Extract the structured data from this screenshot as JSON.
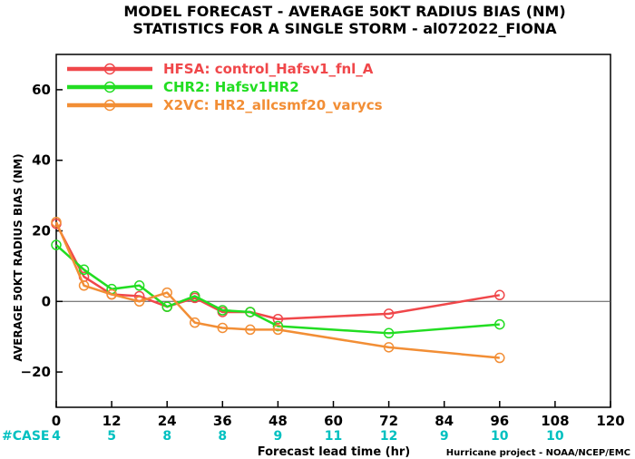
{
  "chart_data": {
    "type": "line",
    "title": [
      "MODEL FORECAST - AVERAGE 50KT RADIUS BIAS (NM)",
      "STATISTICS FOR A SINGLE STORM - al072022_FIONA"
    ],
    "xlabel": "Forecast lead time (hr)",
    "ylabel": "AVERAGE 50KT RADIUS BIAS (NM)",
    "xlim": [
      0,
      120
    ],
    "ylim": [
      -30,
      70
    ],
    "xticks": [
      0,
      12,
      24,
      36,
      48,
      60,
      72,
      84,
      96,
      108,
      120
    ],
    "yticks": [
      -20,
      0,
      20,
      40,
      60
    ],
    "zero_line": true,
    "legend_position": "top-left",
    "series": [
      {
        "name": "HFSA: control_Hafsv1_fnl_A",
        "color": "#f0474a",
        "x": [
          0,
          6,
          12,
          18,
          24,
          30,
          36,
          42,
          48,
          72,
          96
        ],
        "y": [
          22,
          7,
          2,
          1.5,
          -1.5,
          1,
          -3,
          -3,
          -5,
          -3.5,
          1.8
        ]
      },
      {
        "name": "CHR2: Hafsv1HR2",
        "color": "#22dd22",
        "x": [
          0,
          6,
          12,
          18,
          24,
          30,
          36,
          42,
          48,
          72,
          96
        ],
        "y": [
          16,
          9,
          3.5,
          4.5,
          -1.5,
          1.5,
          -2.5,
          -3,
          -7,
          -9,
          -6.5
        ]
      },
      {
        "name": "X2VC: HR2_allcsmf20_varycs",
        "color": "#f28e35",
        "x": [
          0,
          6,
          12,
          18,
          24,
          30,
          36,
          42,
          48,
          72,
          96
        ],
        "y": [
          22.5,
          4.5,
          2,
          0,
          2.5,
          -6,
          -7.5,
          -8,
          -8,
          -13,
          -16
        ]
      }
    ],
    "case_label": "#CASE",
    "case_color": "#00c0c0",
    "cases": [
      {
        "x": 0,
        "n": "4"
      },
      {
        "x": 12,
        "n": "5"
      },
      {
        "x": 24,
        "n": "8"
      },
      {
        "x": 36,
        "n": "8"
      },
      {
        "x": 48,
        "n": "9"
      },
      {
        "x": 60,
        "n": "11"
      },
      {
        "x": 72,
        "n": "12"
      },
      {
        "x": 84,
        "n": "9"
      },
      {
        "x": 96,
        "n": "10"
      },
      {
        "x": 108,
        "n": "10"
      }
    ]
  },
  "credit": "Hurricane project - NOAA/NCEP/EMC"
}
